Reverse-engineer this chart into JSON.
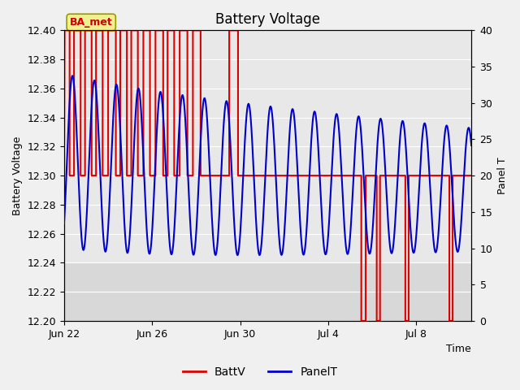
{
  "title": "Battery Voltage",
  "xlabel": "Time",
  "ylabel_left": "Battery Voltage",
  "ylabel_right": "Panel T",
  "ylim_left": [
    12.2,
    12.4
  ],
  "ylim_right": [
    0,
    40
  ],
  "yticks_left": [
    12.2,
    12.22,
    12.24,
    12.26,
    12.28,
    12.3,
    12.32,
    12.34,
    12.36,
    12.38,
    12.4
  ],
  "yticks_right": [
    0,
    5,
    10,
    15,
    20,
    25,
    30,
    35,
    40
  ],
  "bg_outer": "#f0f0f0",
  "bg_plot_dark": "#d8d8d8",
  "bg_plot_light": "#e8e8e8",
  "grid_color": "#ffffff",
  "annotation_text": "BA_met",
  "annotation_color": "#cc0000",
  "annotation_bg": "#f0f090",
  "annotation_edge": "#999900",
  "legend_entries": [
    "BattV",
    "PanelT"
  ],
  "batt_color": "#dd0000",
  "panel_color": "#0000cc",
  "batt_lw": 1.5,
  "panel_lw": 1.5,
  "title_fontsize": 12,
  "axis_fontsize": 9,
  "tick_fontsize": 9,
  "legend_fontsize": 10,
  "xtick_positions": [
    0,
    4,
    8,
    12,
    16
  ],
  "xtick_labels": [
    "Jun 22",
    "Jun 26",
    "Jun 30",
    "Jul 4",
    "Jul 8"
  ],
  "xlim": [
    0,
    18.5
  ],
  "batt_segments": [
    [
      0.0,
      12.3
    ],
    [
      0.02,
      12.4
    ],
    [
      0.25,
      12.4
    ],
    [
      0.25,
      12.3
    ],
    [
      0.45,
      12.3
    ],
    [
      0.45,
      12.4
    ],
    [
      0.75,
      12.4
    ],
    [
      0.75,
      12.3
    ],
    [
      0.95,
      12.3
    ],
    [
      0.95,
      12.4
    ],
    [
      1.25,
      12.4
    ],
    [
      1.25,
      12.3
    ],
    [
      1.45,
      12.3
    ],
    [
      1.45,
      12.4
    ],
    [
      1.75,
      12.4
    ],
    [
      1.75,
      12.3
    ],
    [
      2.0,
      12.3
    ],
    [
      2.0,
      12.4
    ],
    [
      2.35,
      12.4
    ],
    [
      2.35,
      12.3
    ],
    [
      2.55,
      12.3
    ],
    [
      2.55,
      12.4
    ],
    [
      2.85,
      12.4
    ],
    [
      2.85,
      12.3
    ],
    [
      3.05,
      12.3
    ],
    [
      3.05,
      12.4
    ],
    [
      3.35,
      12.4
    ],
    [
      3.35,
      12.3
    ],
    [
      3.6,
      12.3
    ],
    [
      3.6,
      12.4
    ],
    [
      3.9,
      12.4
    ],
    [
      3.9,
      12.3
    ],
    [
      4.15,
      12.3
    ],
    [
      4.15,
      12.4
    ],
    [
      4.5,
      12.4
    ],
    [
      4.5,
      12.3
    ],
    [
      4.7,
      12.3
    ],
    [
      4.7,
      12.4
    ],
    [
      5.0,
      12.4
    ],
    [
      5.0,
      12.3
    ],
    [
      5.25,
      12.3
    ],
    [
      5.25,
      12.4
    ],
    [
      5.6,
      12.4
    ],
    [
      5.6,
      12.3
    ],
    [
      5.85,
      12.3
    ],
    [
      5.85,
      12.4
    ],
    [
      6.2,
      12.4
    ],
    [
      6.2,
      12.3
    ],
    [
      7.5,
      12.3
    ],
    [
      7.5,
      12.4
    ],
    [
      7.9,
      12.4
    ],
    [
      7.9,
      12.3
    ],
    [
      13.5,
      12.3
    ],
    [
      13.5,
      12.2
    ],
    [
      13.7,
      12.2
    ],
    [
      13.7,
      12.3
    ],
    [
      14.2,
      12.3
    ],
    [
      14.2,
      12.2
    ],
    [
      14.35,
      12.2
    ],
    [
      14.35,
      12.3
    ],
    [
      15.5,
      12.3
    ],
    [
      15.5,
      12.2
    ],
    [
      15.65,
      12.2
    ],
    [
      15.65,
      12.3
    ],
    [
      17.5,
      12.3
    ],
    [
      17.5,
      12.2
    ],
    [
      17.65,
      12.2
    ],
    [
      17.65,
      12.3
    ],
    [
      18.5,
      12.3
    ]
  ],
  "panel_params": {
    "t_start": 0.0,
    "t_end": 18.5,
    "n_points": 3000
  }
}
